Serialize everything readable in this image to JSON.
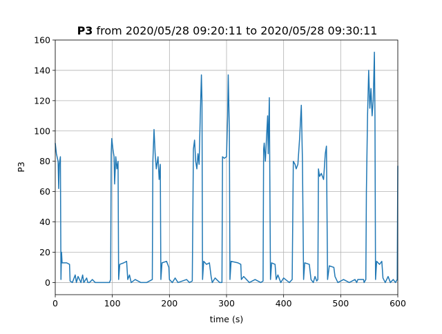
{
  "chart_data": {
    "type": "line",
    "title_label": "P3",
    "title": "from 2020/05/28 09:20:11 to 2020/05/28 09:30:11",
    "xlabel": "time (s)",
    "ylabel": "P3",
    "xlim": [
      0,
      600
    ],
    "ylim": [
      -8,
      160
    ],
    "xticks": [
      0,
      100,
      200,
      300,
      400,
      500,
      600
    ],
    "yticks": [
      0,
      20,
      40,
      60,
      80,
      100,
      120,
      140,
      160
    ],
    "grid": true,
    "series": [
      {
        "color": "#1f77b4",
        "x": [
          0,
          2,
          5,
          6,
          7,
          9,
          10,
          11,
          12,
          20,
          25,
          26,
          30,
          35,
          37,
          40,
          45,
          48,
          50,
          55,
          57,
          60,
          65,
          70,
          75,
          95,
          97,
          98,
          99,
          101,
          103,
          104,
          106,
          108,
          110,
          111,
          113,
          120,
          125,
          127,
          130,
          133,
          140,
          150,
          160,
          170,
          171,
          173,
          175,
          177,
          180,
          182,
          184,
          185,
          187,
          195,
          199,
          200,
          205,
          210,
          215,
          230,
          235,
          240,
          242,
          244,
          246,
          248,
          250,
          252,
          254,
          256,
          257,
          258,
          260,
          265,
          270,
          273,
          275,
          280,
          288,
          292,
          293,
          296,
          300,
          302,
          303,
          305,
          306,
          308,
          320,
          325,
          326,
          330,
          340,
          350,
          360,
          364,
          365,
          366,
          368,
          370,
          372,
          373,
          375,
          376,
          377,
          379,
          385,
          387,
          390,
          395,
          400,
          410,
          415,
          417,
          420,
          422,
          425,
          428,
          430,
          431,
          433,
          435,
          437,
          445,
          448,
          452,
          455,
          458,
          460,
          461,
          463,
          466,
          470,
          473,
          475,
          477,
          480,
          488,
          490,
          495,
          505,
          515,
          525,
          528,
          530,
          540,
          541,
          544,
          545,
          547,
          549,
          551,
          553,
          555,
          557,
          559,
          560,
          561,
          563,
          568,
          572,
          574,
          578,
          583,
          587,
          592,
          596,
          599,
          600
        ],
        "values": [
          92,
          85,
          80,
          62,
          78,
          83,
          2,
          20,
          13,
          13,
          12,
          1,
          0,
          5,
          0,
          4,
          0,
          5,
          0,
          3,
          0,
          0,
          2,
          0,
          0,
          0,
          2,
          85,
          95,
          88,
          83,
          65,
          83,
          75,
          80,
          2,
          12,
          13,
          14,
          2,
          5,
          0,
          2,
          0,
          0,
          2,
          80,
          101,
          85,
          75,
          83,
          68,
          78,
          2,
          13,
          14,
          10,
          2,
          0,
          3,
          0,
          2,
          0,
          1,
          88,
          94,
          80,
          75,
          85,
          78,
          110,
          137,
          120,
          2,
          14,
          12,
          13,
          4,
          0,
          3,
          0,
          0,
          83,
          82,
          83,
          110,
          137,
          100,
          2,
          14,
          13,
          12,
          2,
          4,
          0,
          2,
          0,
          1,
          88,
          92,
          80,
          95,
          110,
          85,
          122,
          60,
          2,
          13,
          12,
          2,
          5,
          0,
          3,
          0,
          2,
          80,
          78,
          75,
          78,
          95,
          110,
          117,
          80,
          2,
          13,
          12,
          2,
          0,
          4,
          1,
          2,
          75,
          70,
          72,
          68,
          85,
          90,
          2,
          11,
          10,
          4,
          0,
          2,
          0,
          2,
          0,
          2,
          2,
          0,
          2,
          60,
          110,
          140,
          115,
          128,
          110,
          120,
          152,
          110,
          2,
          14,
          12,
          14,
          3,
          0,
          4,
          0,
          2,
          0,
          2,
          77
        ]
      }
    ]
  }
}
